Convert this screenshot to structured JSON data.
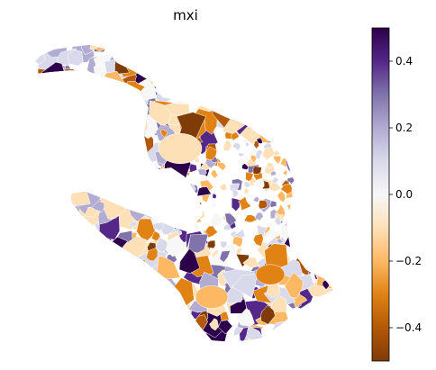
{
  "title": "mxi",
  "colorbar": {
    "colormap": "PuOr",
    "min": -0.5,
    "max": 0.5,
    "ticks": [
      0.4,
      0.2,
      0.0,
      -0.2,
      -0.4
    ],
    "tick_labels": [
      "0.4",
      "0.2",
      "0.0",
      "−0.2",
      "−0.4"
    ],
    "colors": [
      "#2d004b",
      "#542788",
      "#8073ac",
      "#b2abd2",
      "#d8daeb",
      "#f7f7f7",
      "#fee0b6",
      "#fdb863",
      "#e08214",
      "#b35806",
      "#7f3b08"
    ]
  },
  "map": {
    "type": "choropleth"
  }
}
